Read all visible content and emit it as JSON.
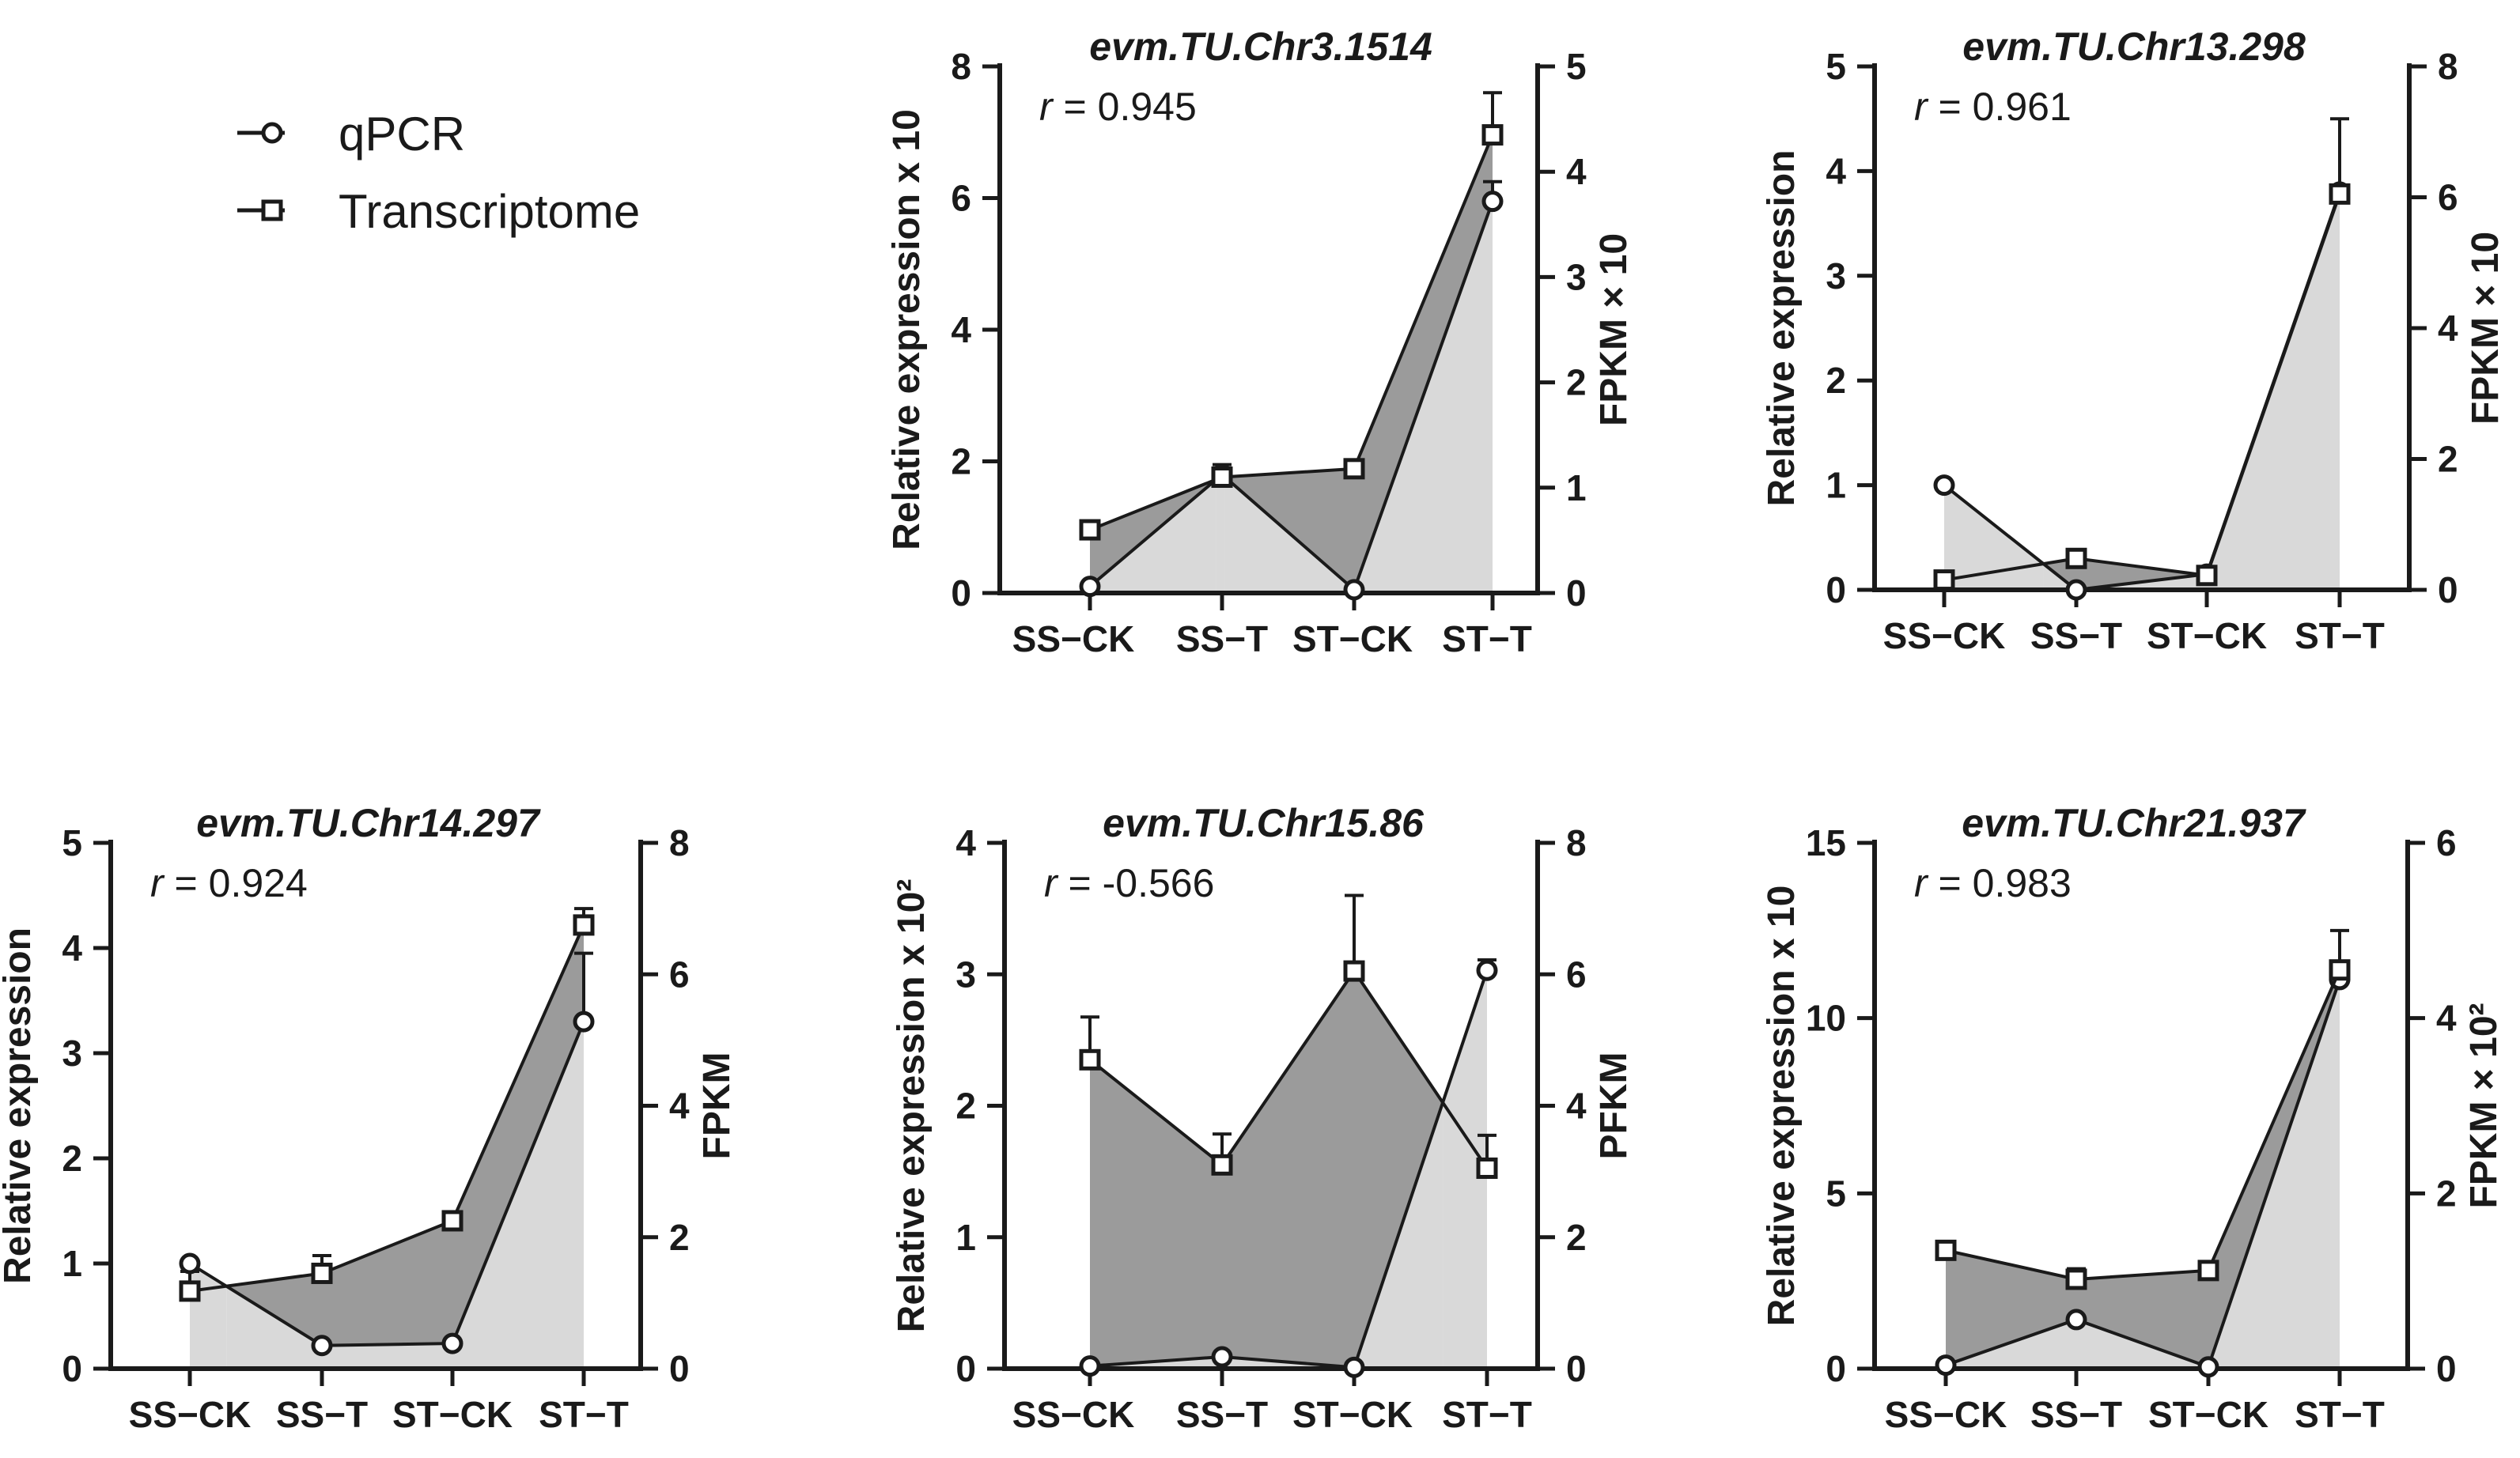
{
  "legend": {
    "items": [
      {
        "label": "qPCR",
        "marker": "circle"
      },
      {
        "label": "Transcriptome",
        "marker": "square"
      }
    ]
  },
  "colors": {
    "dark_fill": "#9b9b9b",
    "light_fill": "#d9d9d9",
    "line": "#1a1a1a"
  },
  "chart_data": [
    {
      "type": "line",
      "title": "evm.TU.Chr3.1514",
      "r_label": "r",
      "r_value": "= 0.945",
      "categories": [
        "SS−CK",
        "SS−T",
        "ST−CK",
        "ST−T"
      ],
      "ylabel_left": "Relative expression x 10",
      "ylabel_right": "FPKM × 10",
      "ylim_left": [
        0,
        8
      ],
      "yticks_left": [
        0,
        2,
        4,
        6,
        8
      ],
      "ylim_right": [
        0,
        5
      ],
      "yticks_right": [
        0,
        1,
        2,
        3,
        4,
        5
      ],
      "series": [
        {
          "name": "qPCR",
          "axis": "left",
          "values": [
            0.1,
            1.8,
            0.05,
            5.95
          ],
          "err": [
            0,
            0.15,
            0,
            0.3
          ]
        },
        {
          "name": "Transcriptome",
          "axis": "right",
          "values": [
            0.6,
            1.1,
            1.18,
            4.35
          ],
          "err": [
            0,
            0,
            0,
            0.4
          ]
        }
      ]
    },
    {
      "type": "line",
      "title": "evm.TU.Chr13.298",
      "r_label": "r",
      "r_value": "= 0.961",
      "categories": [
        "SS−CK",
        "SS−T",
        "ST−CK",
        "ST−T"
      ],
      "ylabel_left": "Relative expression",
      "ylabel_right": "FPKM × 10",
      "ylim_left": [
        0,
        5
      ],
      "yticks_left": [
        0,
        1,
        2,
        3,
        4,
        5
      ],
      "ylim_right": [
        0,
        8
      ],
      "yticks_right": [
        0,
        2,
        4,
        6,
        8
      ],
      "series": [
        {
          "name": "qPCR",
          "axis": "left",
          "values": [
            1.0,
            0.0,
            0.15,
            3.8
          ],
          "err": [
            0,
            0,
            0,
            0.7
          ]
        },
        {
          "name": "Transcriptome",
          "axis": "right",
          "values": [
            0.15,
            0.48,
            0.22,
            6.05
          ],
          "err": [
            0,
            0,
            0,
            0
          ]
        }
      ]
    },
    {
      "type": "line",
      "title": "evm.TU.Chr14.297",
      "r_label": "r",
      "r_value": "= 0.924",
      "categories": [
        "SS−CK",
        "SS−T",
        "ST−CK",
        "ST−T"
      ],
      "ylabel_left": "Relative expression",
      "ylabel_right": "FPKM",
      "ylim_left": [
        0,
        5
      ],
      "yticks_left": [
        0,
        1,
        2,
        3,
        4,
        5
      ],
      "ylim_right": [
        0,
        8
      ],
      "yticks_right": [
        0,
        2,
        4,
        6,
        8
      ],
      "series": [
        {
          "name": "qPCR",
          "axis": "left",
          "values": [
            1.0,
            0.22,
            0.24,
            3.3
          ],
          "err": [
            0,
            0,
            0,
            0.65
          ]
        },
        {
          "name": "Transcriptome",
          "axis": "right",
          "values": [
            1.18,
            1.45,
            2.25,
            6.75
          ],
          "err": [
            0.3,
            0.27,
            0,
            0.25
          ]
        }
      ]
    },
    {
      "type": "line",
      "title": "evm.TU.Chr15.86",
      "r_label": "r",
      "r_value": "= -0.566",
      "categories": [
        "SS−CK",
        "SS−T",
        "ST−CK",
        "ST−T"
      ],
      "ylabel_left": "Relative expression x 10²",
      "ylabel_right": "PFKM",
      "ylim_left": [
        0,
        4
      ],
      "yticks_left": [
        0,
        1,
        2,
        3,
        4
      ],
      "ylim_right": [
        0,
        8
      ],
      "yticks_right": [
        0,
        2,
        4,
        6,
        8
      ],
      "series": [
        {
          "name": "qPCR",
          "axis": "left",
          "values": [
            0.02,
            0.09,
            0.01,
            3.03
          ],
          "err": [
            0,
            0,
            0,
            0.08
          ]
        },
        {
          "name": "Transcriptome",
          "axis": "right",
          "values": [
            4.7,
            3.1,
            6.05,
            3.05
          ],
          "err": [
            0.65,
            0.47,
            1.15,
            0.5
          ]
        }
      ]
    },
    {
      "type": "line",
      "title": "evm.TU.Chr21.937",
      "r_label": "r",
      "r_value": "= 0.983",
      "categories": [
        "SS−CK",
        "SS−T",
        "ST−CK",
        "ST−T"
      ],
      "ylabel_left": "Relative expression  x 10",
      "ylabel_right": "FPKM × 10²",
      "ylim_left": [
        0,
        15
      ],
      "yticks_left": [
        0,
        5,
        10,
        15
      ],
      "ylim_right": [
        0,
        6
      ],
      "yticks_right": [
        0,
        2,
        4,
        6
      ],
      "series": [
        {
          "name": "qPCR",
          "axis": "left",
          "values": [
            0.1,
            1.4,
            0.05,
            11.1
          ],
          "err": [
            0,
            0,
            0,
            0
          ]
        },
        {
          "name": "Transcriptome",
          "axis": "right",
          "values": [
            1.35,
            1.02,
            1.12,
            4.55
          ],
          "err": [
            0,
            0.12,
            0,
            0.45
          ]
        }
      ]
    }
  ]
}
